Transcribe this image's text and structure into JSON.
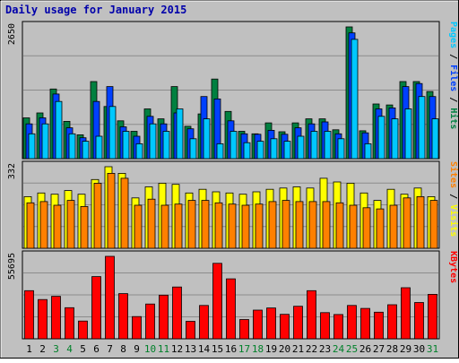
{
  "chart_data": {
    "type": "bar",
    "title": "Daily usage for January 2015",
    "categories": [
      "1",
      "2",
      "3",
      "4",
      "5",
      "6",
      "7",
      "8",
      "9",
      "10",
      "11",
      "12",
      "13",
      "14",
      "15",
      "16",
      "17",
      "18",
      "19",
      "20",
      "21",
      "22",
      "23",
      "24",
      "25",
      "26",
      "27",
      "28",
      "29",
      "30",
      "31"
    ],
    "weekend_days": [
      "3",
      "4",
      "10",
      "11",
      "17",
      "18",
      "24",
      "25",
      "31"
    ],
    "panels": [
      {
        "id": "hits",
        "ymax": 2650,
        "ymax_label": "2650",
        "legend": [
          {
            "label": "Pages",
            "color": "#00c8ff"
          },
          {
            "label": "Files",
            "color": "#0040ff"
          },
          {
            "label": "Hits",
            "color": "#008040"
          }
        ],
        "series": [
          {
            "name": "Hits",
            "color": "#008040",
            "values": [
              820,
              920,
              1400,
              750,
              480,
              1550,
              1050,
              760,
              550,
              1000,
              800,
              1450,
              650,
              900,
              1600,
              950,
              550,
              500,
              720,
              540,
              720,
              800,
              800,
              580,
              2650,
              560,
              1100,
              1080,
              1550,
              1550,
              1350
            ]
          },
          {
            "name": "Files",
            "color": "#0040ff",
            "values": [
              700,
              820,
              1300,
              620,
              420,
              1150,
              1450,
              640,
              450,
              850,
              700,
              920,
              600,
              1250,
              1200,
              760,
              500,
              490,
              570,
              490,
              620,
              700,
              740,
              500,
              2530,
              520,
              1000,
              1020,
              1450,
              1510,
              1250
            ]
          },
          {
            "name": "Pages",
            "color": "#00c8ff",
            "values": [
              500,
              700,
              1150,
              500,
              350,
              450,
              1050,
              550,
              300,
              700,
              550,
              1000,
              400,
              800,
              300,
              550,
              320,
              350,
              400,
              350,
              450,
              550,
              550,
              400,
              2400,
              300,
              850,
              800,
              1000,
              1250,
              800
            ]
          }
        ]
      },
      {
        "id": "visits",
        "ymax": 332,
        "ymax_label": "332",
        "legend": [
          {
            "label": "Sites",
            "color": "#ff8000"
          },
          {
            "label": "Visits",
            "color": "#ffff00"
          }
        ],
        "series": [
          {
            "name": "Visits",
            "color": "#ffff00",
            "values": [
              210,
              225,
              220,
              235,
              220,
              280,
              332,
              305,
              205,
              250,
              265,
              260,
              225,
              240,
              230,
              225,
              220,
              230,
              240,
              245,
              250,
              245,
              285,
              270,
              265,
              225,
              195,
              240,
              220,
              245,
              210
            ]
          },
          {
            "name": "Sites",
            "color": "#ff8000",
            "values": [
              185,
              190,
              175,
              195,
              170,
              265,
              305,
              285,
              175,
              200,
              175,
              180,
              195,
              195,
              185,
              180,
              175,
              180,
              190,
              195,
              190,
              190,
              190,
              185,
              175,
              165,
              160,
              175,
              205,
              210,
              195
            ]
          }
        ]
      },
      {
        "id": "kbytes",
        "ymax": 55695,
        "ymax_label": "55695",
        "legend": [
          {
            "label": "KBytes",
            "color": "#ff0000"
          }
        ],
        "series": [
          {
            "name": "KBytes",
            "color": "#ff0000",
            "values": [
              32500,
              26500,
              28700,
              21000,
              12000,
              42000,
              55695,
              30500,
              15000,
              23500,
              29500,
              35000,
              11800,
              22500,
              51000,
              40500,
              13000,
              19400,
              20800,
              16500,
              22000,
              32500,
              17700,
              16400,
              22500,
              20500,
              18000,
              23000,
              34500,
              24500,
              30000
            ]
          }
        ]
      }
    ]
  }
}
